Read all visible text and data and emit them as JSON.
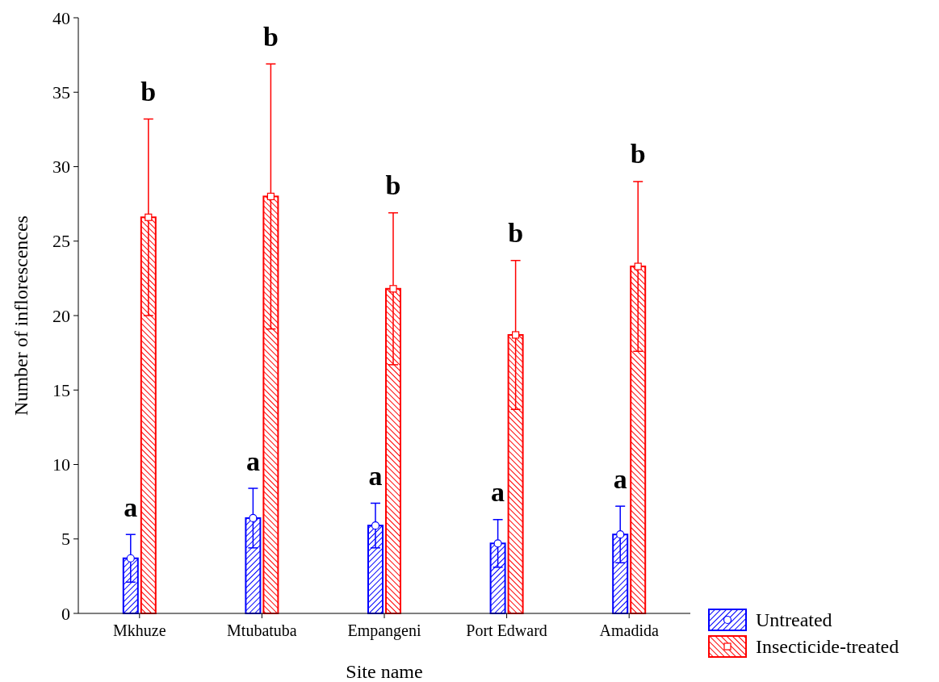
{
  "chart_data": {
    "type": "bar",
    "xlabel": "Site name",
    "ylabel": "Number of inflorescences",
    "categories": [
      "Mkhuze",
      "Mtubatuba",
      "Empangeni",
      "Port Edward",
      "Amadida"
    ],
    "series": [
      {
        "name": "Untreated",
        "color": "#0000ff",
        "marker": "circle",
        "values": [
          3.7,
          6.4,
          5.9,
          4.7,
          5.3
        ],
        "errors": [
          1.6,
          2.0,
          1.5,
          1.6,
          1.9
        ]
      },
      {
        "name": "Insecticide-treated",
        "color": "#ff0000",
        "marker": "square",
        "values": [
          26.6,
          28.0,
          21.8,
          18.7,
          23.3
        ],
        "errors": [
          6.6,
          8.9,
          5.1,
          5.0,
          5.7
        ]
      }
    ],
    "ylim": [
      0,
      40
    ],
    "yticks": [
      0,
      5,
      10,
      15,
      20,
      25,
      30,
      35,
      40
    ],
    "grid": false,
    "legend": "bottom right",
    "annotations": [
      "a",
      "b",
      "a",
      "b",
      "a",
      "b",
      "a",
      "b",
      "a",
      "b"
    ]
  }
}
